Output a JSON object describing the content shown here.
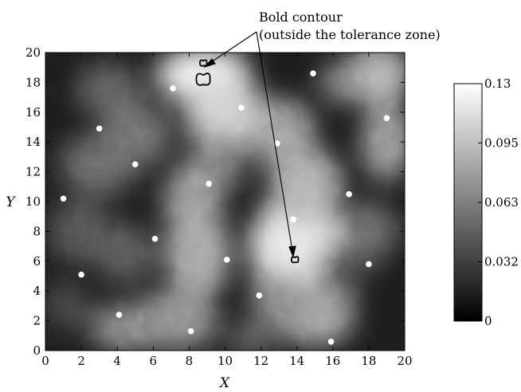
{
  "chart_data": {
    "type": "heatmap",
    "annotation": {
      "line1": "Bold contour",
      "line2": "(outside the tolerance zone)"
    },
    "xlabel": "X",
    "ylabel": "Y",
    "xlim": [
      0,
      20
    ],
    "ylim": [
      0,
      20
    ],
    "x_ticks": [
      "0",
      "2",
      "4",
      "6",
      "8",
      "10",
      "12",
      "14",
      "16",
      "18",
      "20"
    ],
    "y_ticks": [
      "0",
      "2",
      "4",
      "6",
      "8",
      "10",
      "12",
      "14",
      "16",
      "18",
      "20"
    ],
    "colorbar": {
      "min": 0,
      "max": 0.13,
      "tick_labels": [
        "0",
        "0.032",
        "0.063",
        "0.095",
        "0.13"
      ],
      "colormap": "gray",
      "low_color": "#000000",
      "high_color": "#ffffff"
    },
    "sample_points": [
      {
        "x": 1.0,
        "y": 10.2
      },
      {
        "x": 2.0,
        "y": 5.1
      },
      {
        "x": 3.0,
        "y": 14.9
      },
      {
        "x": 4.1,
        "y": 2.4
      },
      {
        "x": 5.0,
        "y": 12.5
      },
      {
        "x": 6.1,
        "y": 7.5
      },
      {
        "x": 7.1,
        "y": 17.6
      },
      {
        "x": 8.1,
        "y": 1.3
      },
      {
        "x": 9.1,
        "y": 11.2
      },
      {
        "x": 10.1,
        "y": 6.1
      },
      {
        "x": 10.9,
        "y": 16.3
      },
      {
        "x": 11.9,
        "y": 3.7
      },
      {
        "x": 12.9,
        "y": 13.9
      },
      {
        "x": 13.8,
        "y": 8.8
      },
      {
        "x": 14.9,
        "y": 18.6
      },
      {
        "x": 15.9,
        "y": 0.6
      },
      {
        "x": 16.9,
        "y": 10.5
      },
      {
        "x": 18.0,
        "y": 5.8
      },
      {
        "x": 19.0,
        "y": 15.6
      }
    ],
    "bold_contour_regions": [
      {
        "x": 8.8,
        "y": 18.2
      },
      {
        "x": 8.8,
        "y": 19.3
      },
      {
        "x": 13.9,
        "y": 6.1
      }
    ],
    "grid": false
  }
}
